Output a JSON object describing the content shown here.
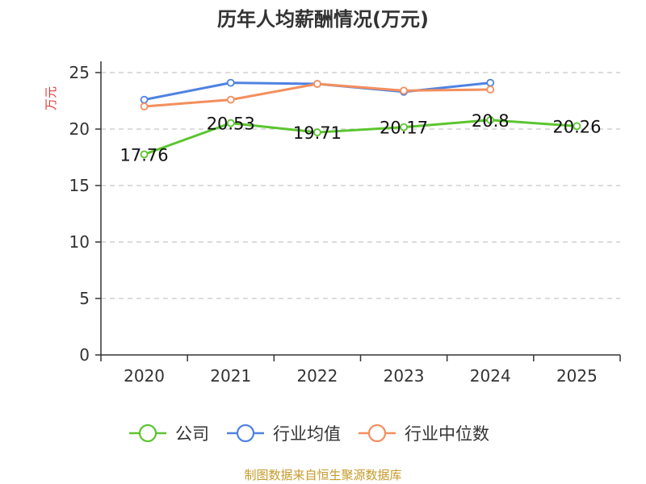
{
  "title": "历年人均薪酬情况(万元)",
  "source_note": "制图数据来自恒生聚源数据库",
  "colors": {
    "company": "#5bc52e",
    "industry_avg": "#4f82e1",
    "industry_median": "#f48e5d",
    "ylabel": "#e03a3a",
    "source_note": "#c59a2a",
    "grid": "#c8c8c8",
    "axis": "#333333"
  },
  "chart_data": {
    "type": "line",
    "title": "历年人均薪酬情况(万元)",
    "xlabel": "",
    "ylabel": "万元",
    "categories": [
      "2020",
      "2021",
      "2022",
      "2023",
      "2024",
      "2025"
    ],
    "ylim": [
      0,
      25
    ],
    "yticks": [
      0,
      5,
      10,
      15,
      20,
      25
    ],
    "grid": true,
    "legend_position": "bottom",
    "series": [
      {
        "key": "company",
        "name": "公司",
        "values": [
          17.76,
          20.53,
          19.71,
          20.17,
          20.8,
          20.26
        ],
        "show_labels": true
      },
      {
        "key": "industry_avg",
        "name": "行业均值",
        "values": [
          22.6,
          24.1,
          24.0,
          23.3,
          24.1,
          null
        ],
        "show_labels": false
      },
      {
        "key": "industry_median",
        "name": "行业中位数",
        "values": [
          22.0,
          22.6,
          24.0,
          23.4,
          23.5,
          null
        ],
        "show_labels": false
      }
    ]
  }
}
